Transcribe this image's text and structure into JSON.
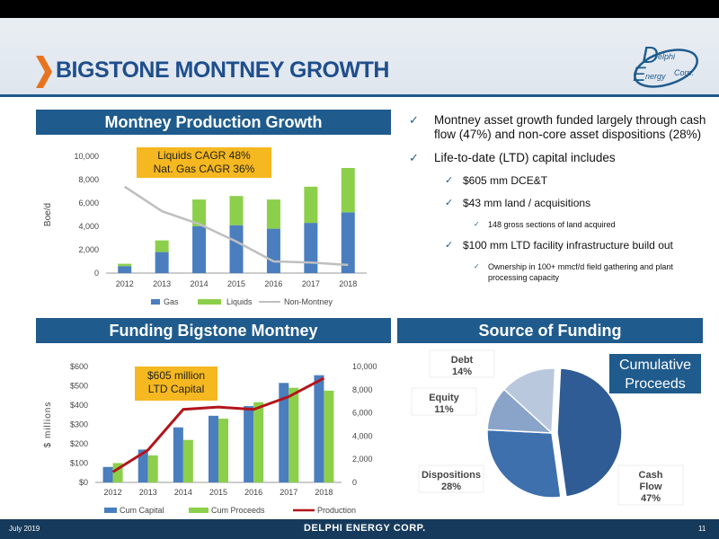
{
  "header": {
    "title": "BIGSTONE MONTNEY GROWTH"
  },
  "logo": {
    "line1": "elphi",
    "line2": "nergy",
    "line3": "Corp."
  },
  "colors": {
    "navy": "#1f5b8c",
    "gas": "#4a7ebf",
    "liquids": "#8ccf4b",
    "nonmontney": "#bfbfbf",
    "production": "#b3141b",
    "callout": "#f5b820"
  },
  "panels": {
    "production": "Montney Production Growth",
    "funding": "Funding Bigstone Montney",
    "source": "Source of Funding"
  },
  "callouts": {
    "cagr_line1": "Liquids CAGR  48%",
    "cagr_line2": "Nat. Gas CAGR 36%",
    "capital_line1": "$605 million",
    "capital_line2": "LTD Capital",
    "cumulative_line1": "Cumulative",
    "cumulative_line2": "Proceeds"
  },
  "bullets": {
    "b1": "Montney asset growth funded largely through cash flow (47%) and non-core asset dispositions (28%)",
    "b2": "Life-to-date (LTD) capital includes",
    "b2a": "$605 mm DCE&T",
    "b2b": "$43 mm land / acquisitions",
    "b2b1": "148 gross sections of land acquired",
    "b2c": "$100 mm LTD facility infrastructure build out",
    "b2c1": "Ownership in 100+ mmcf/d field gathering and plant processing capacity"
  },
  "footer": {
    "date": "July 2019",
    "company": "DELPHI ENERGY CORP.",
    "page": "11"
  },
  "chart_data": [
    {
      "type": "bar",
      "title": "Montney Production Growth",
      "ylabel": "Boe/d",
      "ylim": [
        0,
        10000
      ],
      "yticks": [
        "0",
        "2,000",
        "4,000",
        "6,000",
        "8,000",
        "10,000"
      ],
      "categories": [
        "2012",
        "2013",
        "2014",
        "2015",
        "2016",
        "2017",
        "2018"
      ],
      "stacked": true,
      "legend": "bottom",
      "series": [
        {
          "name": "Gas",
          "type": "bar",
          "values": [
            600,
            1800,
            4000,
            4100,
            3800,
            4300,
            5200
          ]
        },
        {
          "name": "Liquids",
          "type": "bar",
          "values": [
            200,
            1000,
            2300,
            2500,
            2500,
            3100,
            3800
          ]
        },
        {
          "name": "Non-Montney",
          "type": "line",
          "values": [
            7400,
            5300,
            4200,
            2700,
            1000,
            900,
            700
          ]
        }
      ]
    },
    {
      "type": "bar",
      "title": "Funding Bigstone Montney",
      "ylabel": "$ millions",
      "ylim": [
        0,
        600
      ],
      "y2lim": [
        0,
        10000
      ],
      "yticks": [
        "$0",
        "$100",
        "$200",
        "$300",
        "$400",
        "$500",
        "$600"
      ],
      "y2ticks": [
        "0",
        "2,000",
        "4,000",
        "6,000",
        "8,000",
        "10,000"
      ],
      "categories": [
        "2012",
        "2013",
        "2014",
        "2015",
        "2016",
        "2017",
        "2018"
      ],
      "legend": "bottom",
      "series": [
        {
          "name": "Cum Capital",
          "type": "bar",
          "values": [
            80,
            170,
            285,
            345,
            395,
            515,
            555
          ]
        },
        {
          "name": "Cum Proceeds",
          "type": "bar",
          "values": [
            100,
            140,
            220,
            330,
            415,
            490,
            475
          ]
        },
        {
          "name": "Production",
          "type": "line",
          "axis": "right",
          "values": [
            900,
            2800,
            6300,
            6500,
            6300,
            7400,
            9000
          ]
        }
      ]
    },
    {
      "type": "pie",
      "title": "Source of Funding",
      "labels": [
        "Cash Flow",
        "Dispositions",
        "Equity",
        "Debt"
      ],
      "values": [
        47,
        28,
        11,
        14
      ],
      "value_labels": [
        "47%",
        "28%",
        "11%",
        "14%"
      ],
      "colors": [
        "#2f5c94",
        "#3e70ad",
        "#8aa4c9",
        "#b9c8dd"
      ]
    }
  ]
}
